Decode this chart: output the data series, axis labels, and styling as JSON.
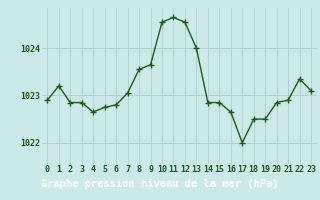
{
  "x": [
    0,
    1,
    2,
    3,
    4,
    5,
    6,
    7,
    8,
    9,
    10,
    11,
    12,
    13,
    14,
    15,
    16,
    17,
    18,
    19,
    20,
    21,
    22,
    23
  ],
  "y": [
    1022.9,
    1023.2,
    1022.85,
    1022.85,
    1022.65,
    1022.75,
    1022.8,
    1023.05,
    1023.55,
    1023.65,
    1024.55,
    1024.65,
    1024.55,
    1024.0,
    1022.85,
    1022.85,
    1022.65,
    1022.0,
    1022.5,
    1022.5,
    1022.85,
    1022.9,
    1023.35,
    1023.1
  ],
  "line_color": "#1a5c1a",
  "marker": "+",
  "marker_size": 4,
  "bg_color": "#cce9e9",
  "grid_color": "#aacfcf",
  "footer_bg": "#4a9a9a",
  "footer_text": "Graphe pression niveau de la mer (hPa)",
  "footer_text_color": "#ffffff",
  "footer_fontsize": 7.5,
  "ytick_labels": [
    "1022",
    "1023",
    "1024"
  ],
  "ytick_values": [
    1022,
    1023,
    1024
  ],
  "ylim": [
    1021.55,
    1024.85
  ],
  "xlim": [
    -0.5,
    23.5
  ],
  "tick_color": "#1a5c1a",
  "tick_fontsize": 6,
  "linewidth": 1.0,
  "marker_linewidth": 1.0
}
